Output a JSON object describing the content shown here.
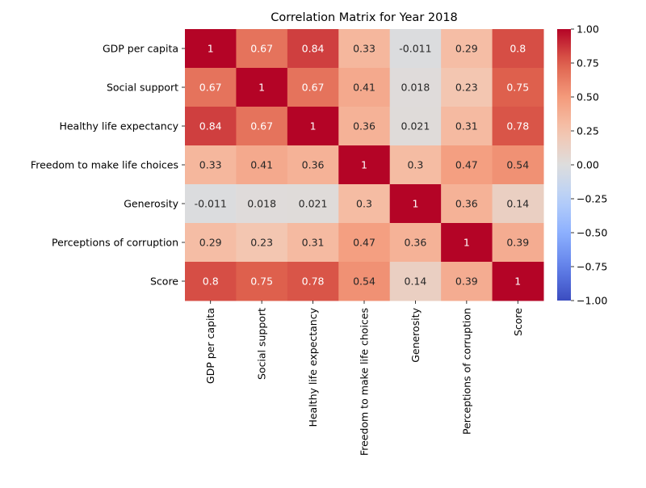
{
  "chart_data": {
    "type": "heatmap",
    "title": "Correlation Matrix for Year 2018",
    "xlabel": "",
    "ylabel": "",
    "labels": [
      "GDP per capita",
      "Social support",
      "Healthy life expectancy",
      "Freedom to make life choices",
      "Generosity",
      "Perceptions of corruption",
      "Score"
    ],
    "matrix": [
      [
        1,
        0.67,
        0.84,
        0.33,
        -0.011,
        0.29,
        0.8
      ],
      [
        0.67,
        1,
        0.67,
        0.41,
        0.018,
        0.23,
        0.75
      ],
      [
        0.84,
        0.67,
        1,
        0.36,
        0.021,
        0.31,
        0.78
      ],
      [
        0.33,
        0.41,
        0.36,
        1,
        0.3,
        0.47,
        0.54
      ],
      [
        -0.011,
        0.018,
        0.021,
        0.3,
        1,
        0.36,
        0.14
      ],
      [
        0.29,
        0.23,
        0.31,
        0.47,
        0.36,
        1,
        0.39
      ],
      [
        0.8,
        0.75,
        0.78,
        0.54,
        0.14,
        0.39,
        1
      ]
    ],
    "cell_labels": [
      [
        "1",
        "0.67",
        "0.84",
        "0.33",
        "-0.011",
        "0.29",
        "0.8"
      ],
      [
        "0.67",
        "1",
        "0.67",
        "0.41",
        "0.018",
        "0.23",
        "0.75"
      ],
      [
        "0.84",
        "0.67",
        "1",
        "0.36",
        "0.021",
        "0.31",
        "0.78"
      ],
      [
        "0.33",
        "0.41",
        "0.36",
        "1",
        "0.3",
        "0.47",
        "0.54"
      ],
      [
        "-0.011",
        "0.018",
        "0.021",
        "0.3",
        "1",
        "0.36",
        "0.14"
      ],
      [
        "0.29",
        "0.23",
        "0.31",
        "0.47",
        "0.36",
        "1",
        "0.39"
      ],
      [
        "0.8",
        "0.75",
        "0.78",
        "0.54",
        "0.14",
        "0.39",
        "1"
      ]
    ],
    "colormap": "coolwarm",
    "vmin": -1,
    "vmax": 1,
    "colorbar_ticks": [
      1.0,
      0.75,
      0.5,
      0.25,
      0.0,
      -0.25,
      -0.5,
      -0.75,
      -1.0
    ],
    "colorbar_tick_labels": [
      "1.00",
      "0.75",
      "0.50",
      "0.25",
      "0.00",
      "−0.25",
      "−0.50",
      "−0.75",
      "−1.00"
    ],
    "grid": false,
    "legend": "colorbar-right"
  }
}
